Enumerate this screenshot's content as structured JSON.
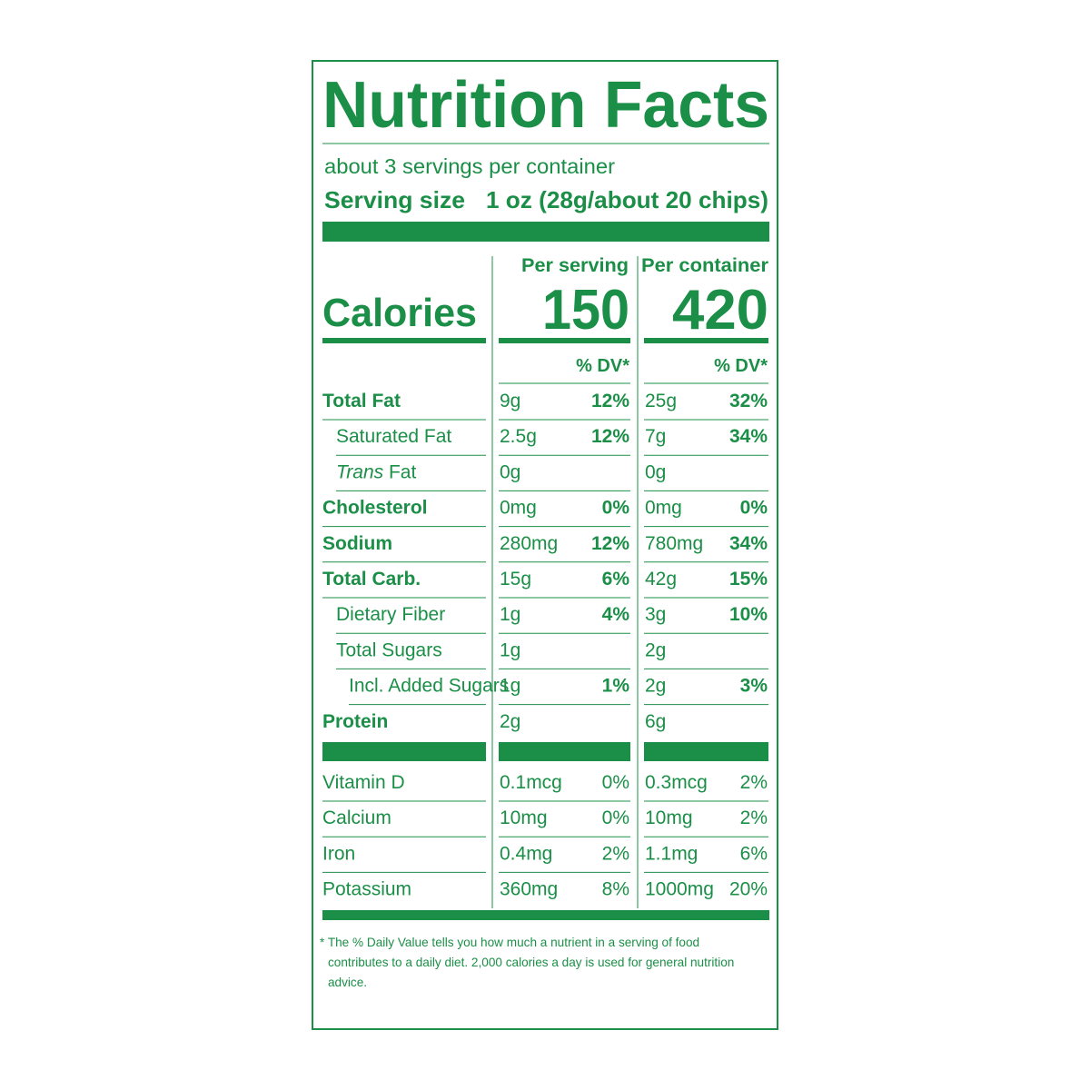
{
  "title": "Nutrition Facts",
  "servings": "about 3 servings per container",
  "serving_size_label": "Serving size",
  "serving_size": "1 oz (28g/about 20 chips)",
  "columns": [
    "Per serving",
    "Per container"
  ],
  "calories": {
    "label": "Calories",
    "values": [
      "150",
      "420"
    ]
  },
  "dv_header": [
    "% DV*",
    "% DV*"
  ],
  "nutrients": [
    {
      "name": "Total Fat",
      "per_serving": [
        "9g",
        "12%"
      ],
      "per_container": [
        "25g",
        "32%"
      ]
    },
    {
      "name": "Saturated Fat",
      "per_serving": [
        "2.5g",
        "12%"
      ],
      "per_container": [
        "7g",
        "34%"
      ]
    },
    {
      "name": {
        "italic": "Trans",
        "text": "Fat"
      },
      "per_serving": [
        "0g"
      ],
      "per_container": [
        "0g"
      ]
    },
    {
      "name": "Cholesterol",
      "per_serving": [
        "0mg",
        "0%"
      ],
      "per_container": [
        "0mg",
        "0%"
      ]
    },
    {
      "name": "Sodium",
      "per_serving": [
        "280mg",
        "12%"
      ],
      "per_container": [
        "780mg",
        "34%"
      ]
    },
    {
      "name": "Total Carb.",
      "per_serving": [
        "15g",
        "6%"
      ],
      "per_container": [
        "42g",
        "15%"
      ]
    },
    {
      "name": "Dietary Fiber",
      "per_serving": [
        "1g",
        "4%"
      ],
      "per_container": [
        "3g",
        "10%"
      ]
    },
    {
      "name": "Total Sugars",
      "per_serving": [
        "1g"
      ],
      "per_container": [
        "2g"
      ]
    },
    {
      "name": "Incl. Added Sugars",
      "per_serving": [
        "1g",
        "1%"
      ],
      "per_container": [
        "2g",
        "3%"
      ]
    },
    {
      "name": "Protein",
      "per_serving": [
        "2g"
      ],
      "per_container": [
        "6g"
      ]
    }
  ],
  "vitamins_minerals": [
    {
      "name": "Vitamin D",
      "per_serving": [
        "0.1mcg",
        "0%"
      ],
      "per_container": [
        "0.3mcg",
        "2%"
      ]
    },
    {
      "name": "Calcium",
      "per_serving": [
        "10mg",
        "0%"
      ],
      "per_container": [
        "10mg",
        "2%"
      ]
    },
    {
      "name": "Iron",
      "per_serving": [
        "0.4mg",
        "2%"
      ],
      "per_container": [
        "1.1mg",
        "6%"
      ]
    },
    {
      "name": "Potassium",
      "per_serving": [
        "360mg",
        "8%"
      ],
      "per_container": [
        "1000mg",
        "20%"
      ]
    }
  ],
  "footnote": "* The % Daily Value tells you how much a nutrient in a serving of food contributes to a daily diet. 2,000 calories a day is used for general nutrition advice."
}
